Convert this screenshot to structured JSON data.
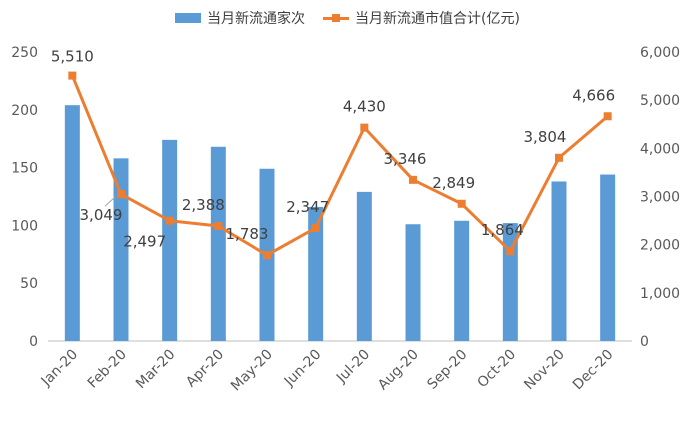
{
  "chart_data": {
    "type": "bar+line",
    "categories": [
      "Jan-20",
      "Feb-20",
      "Mar-20",
      "Apr-20",
      "May-20",
      "Jun-20",
      "Jul-20",
      "Aug-20",
      "Sep-20",
      "Oct-20",
      "Nov-20",
      "Dec-20"
    ],
    "series": [
      {
        "name": "当月新流通家次",
        "type": "bar",
        "axis": "left",
        "color": "#5B9BD5",
        "values": [
          204,
          158,
          174,
          168,
          149,
          116,
          129,
          101,
          104,
          102,
          138,
          144
        ]
      },
      {
        "name": "当月新流通市值合计(亿元)",
        "type": "line",
        "axis": "right",
        "color": "#ED7D31",
        "values": [
          5510,
          3049,
          2497,
          2388,
          1783,
          2347,
          4430,
          3346,
          2849,
          1864,
          3804,
          4666
        ],
        "data_labels": [
          "5,510",
          "3,049",
          "2,497",
          "2,388",
          "1,783",
          "2,347",
          "4,430",
          "3,346",
          "2,849",
          "1,864",
          "3,804",
          "4,666"
        ]
      }
    ],
    "y_left": {
      "lim": [
        0,
        250
      ],
      "ticks": [
        "0",
        "50",
        "100",
        "150",
        "200",
        "250"
      ]
    },
    "y_right": {
      "lim": [
        0,
        6000
      ],
      "ticks": [
        "0",
        "1,000",
        "2,000",
        "3,000",
        "4,000",
        "5,000",
        "6,000"
      ]
    },
    "legend_position": "top",
    "grid": false
  }
}
